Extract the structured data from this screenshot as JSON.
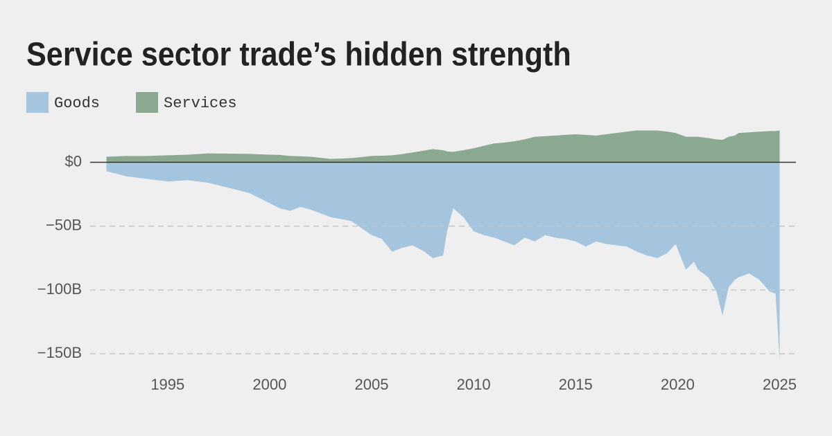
{
  "chart_data": {
    "type": "area",
    "title": "Service sector trade’s hidden strength",
    "x": [
      1992,
      1993,
      1994,
      1995,
      1996,
      1997,
      1998,
      1999,
      2000,
      2000.5,
      2001,
      2001.5,
      2002,
      2003,
      2004,
      2005,
      2005.5,
      2006,
      2006.5,
      2007,
      2007.5,
      2008,
      2008.5,
      2008.7,
      2009,
      2009.5,
      2010,
      2010.5,
      2011,
      2011.5,
      2012,
      2012.5,
      2013,
      2013.5,
      2014,
      2014.5,
      2015,
      2015.5,
      2016,
      2016.5,
      2017,
      2017.5,
      2018,
      2018.5,
      2019,
      2019.5,
      2019.9,
      2020.4,
      2020.8,
      2021,
      2021.5,
      2021.9,
      2022.2,
      2022.5,
      2022.8,
      2023,
      2023.5,
      2024,
      2024.5,
      2024.8,
      2025
    ],
    "series": [
      {
        "name": "Goods",
        "color": "#a4c5dd",
        "values": [
          -7,
          -11,
          -13,
          -15,
          -14,
          -16,
          -20,
          -24,
          -32,
          -36,
          -38,
          -35,
          -37,
          -43,
          -46,
          -57,
          -60,
          -70,
          -67,
          -65,
          -69,
          -75,
          -73,
          -54,
          -36,
          -43,
          -54,
          -57,
          -59,
          -62,
          -65,
          -59,
          -62,
          -57,
          -59,
          -60,
          -62,
          -66,
          -62,
          -64,
          -65,
          -66,
          -70,
          -73,
          -75,
          -71,
          -64,
          -84,
          -78,
          -84,
          -90,
          -101,
          -120,
          -98,
          -92,
          -90,
          -87,
          -92,
          -101,
          -103,
          -155
        ]
      },
      {
        "name": "Services",
        "color": "#8ba891",
        "values": [
          4.4,
          5,
          5,
          5.5,
          6,
          7,
          6.8,
          6.6,
          6,
          5.8,
          5,
          4.8,
          4.4,
          2.7,
          3.3,
          5,
          5.2,
          5.5,
          6.5,
          7.7,
          9,
          10.4,
          9.5,
          8.5,
          8.2,
          9.5,
          11,
          13,
          14.8,
          15.5,
          16.5,
          18,
          20,
          20.5,
          21,
          21.5,
          22,
          21.5,
          21,
          22,
          23,
          24,
          25,
          25,
          25,
          24,
          23,
          20,
          20,
          20,
          19,
          18,
          17.6,
          20,
          21,
          23,
          23.5,
          24,
          24.5,
          24.5,
          25
        ]
      }
    ],
    "xlim": [
      1991.2,
      2025.8
    ],
    "xticks": [
      1995,
      2000,
      2005,
      2010,
      2015,
      2020,
      2025
    ],
    "ylim": [
      -158,
      35
    ],
    "yticks": [
      {
        "value": 0,
        "label": "$0"
      },
      {
        "value": -50,
        "label": "−50B"
      },
      {
        "value": -100,
        "label": "−100B"
      },
      {
        "value": -150,
        "label": "−150B"
      }
    ],
    "grid": true
  }
}
